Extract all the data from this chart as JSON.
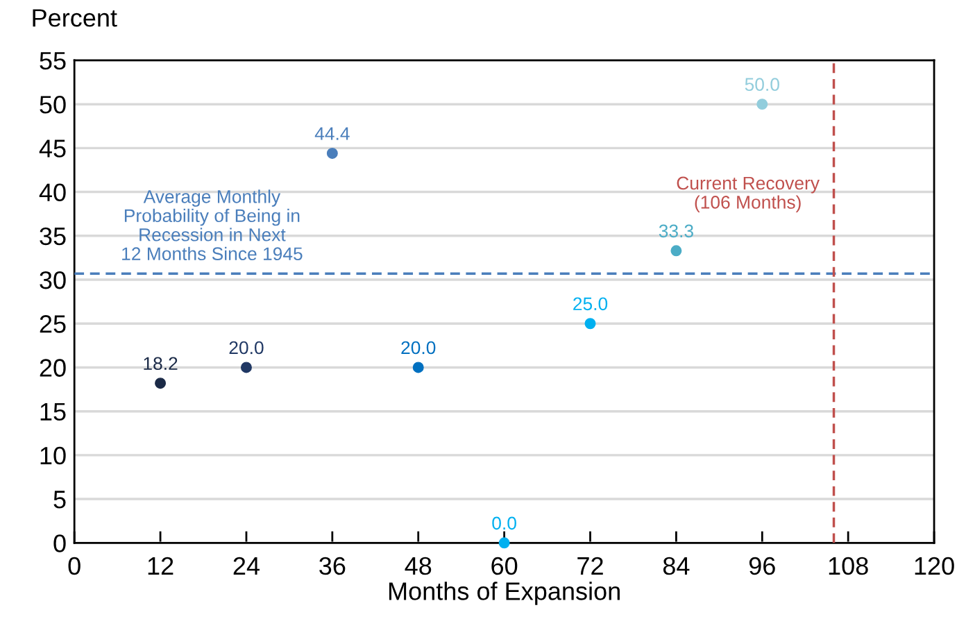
{
  "chart_data": {
    "type": "scatter",
    "xlabel": "Months of Expansion",
    "ylabel": "Percent",
    "x": [
      12,
      24,
      36,
      48,
      60,
      72,
      84,
      96
    ],
    "values": [
      18.2,
      20.0,
      44.4,
      20.0,
      0.0,
      25.0,
      33.3,
      50.0
    ],
    "value_labels": [
      "18.2",
      "20.0",
      "44.4",
      "20.0",
      "0.0",
      "25.0",
      "33.3",
      "50.0"
    ],
    "colors": [
      "#1b2a47",
      "#203864",
      "#4a7ebb",
      "#0070c0",
      "#00b0f0",
      "#00b0f0",
      "#4bacc6",
      "#92cddc"
    ],
    "marker": "circle",
    "xlim": [
      0,
      120
    ],
    "ylim": [
      0,
      55
    ],
    "xticks": [
      0,
      12,
      24,
      36,
      48,
      60,
      72,
      84,
      96,
      108,
      120
    ],
    "yticks": [
      0,
      5,
      10,
      15,
      20,
      25,
      30,
      35,
      40,
      45,
      50,
      55
    ],
    "grid": "y",
    "ref_lines": [
      {
        "axis": "y",
        "value": 30.7,
        "label": "Average Monthly\nProbability of Being in\nRecession in Next\n12 Months Since 1945",
        "color": "#4a7ebb",
        "line_style": "dashed"
      },
      {
        "axis": "x",
        "value": 106,
        "label": "Current Recovery\n(106 Months)",
        "color": "#c0504d",
        "line_style": "dashed"
      }
    ]
  }
}
